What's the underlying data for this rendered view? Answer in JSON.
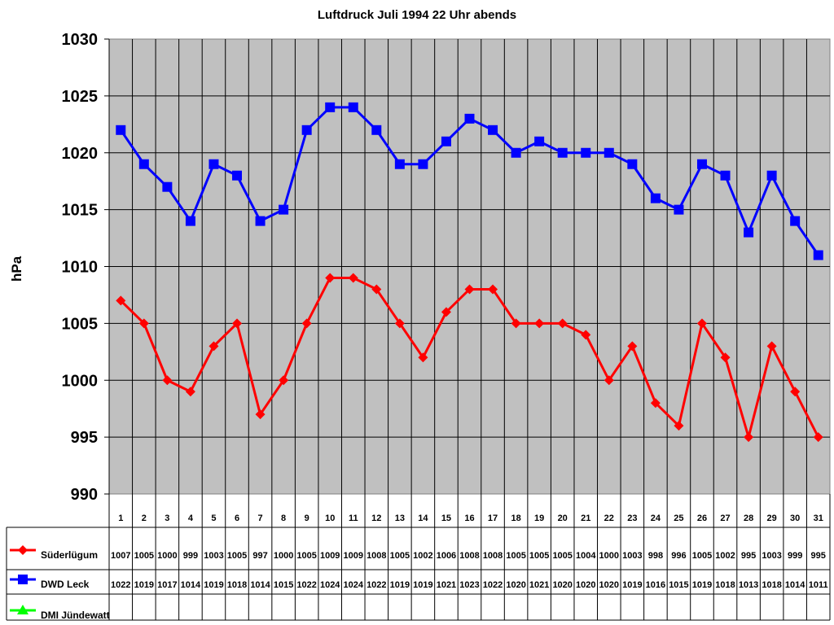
{
  "chart_data": {
    "type": "line",
    "title": "Luftdruck Juli 1994 22 Uhr abends",
    "xlabel": "",
    "ylabel": "hPa",
    "ylim": [
      990,
      1030
    ],
    "yticks": [
      990,
      995,
      1000,
      1005,
      1010,
      1015,
      1020,
      1025,
      1030
    ],
    "grid": true,
    "legend_position": "data-table-left",
    "categories": [
      "1",
      "2",
      "3",
      "4",
      "5",
      "6",
      "7",
      "8",
      "9",
      "10",
      "11",
      "12",
      "13",
      "14",
      "15",
      "16",
      "17",
      "18",
      "19",
      "20",
      "21",
      "22",
      "23",
      "24",
      "25",
      "26",
      "27",
      "28",
      "29",
      "30",
      "31"
    ],
    "series": [
      {
        "name": "Süderlügum",
        "color": "#ff0000",
        "marker": "diamond",
        "values": [
          1007,
          1005,
          1000,
          999,
          1003,
          1005,
          997,
          1000,
          1005,
          1009,
          1009,
          1008,
          1005,
          1002,
          1006,
          1008,
          1008,
          1005,
          1005,
          1005,
          1004,
          1000,
          1003,
          998,
          996,
          1005,
          1002,
          995,
          1003,
          999,
          995
        ]
      },
      {
        "name": "DWD Leck",
        "color": "#0000ff",
        "marker": "square",
        "values": [
          1022,
          1019,
          1017,
          1014,
          1019,
          1018,
          1014,
          1015,
          1022,
          1024,
          1024,
          1022,
          1019,
          1019,
          1021,
          1023,
          1022,
          1020,
          1021,
          1020,
          1020,
          1020,
          1019,
          1016,
          1015,
          1019,
          1018,
          1013,
          1018,
          1014,
          1011
        ]
      },
      {
        "name": "DMI Jündewatt",
        "color": "#00ff00",
        "marker": "triangle",
        "values": []
      }
    ]
  },
  "style": {
    "plot_bg": "#c0c0c0",
    "grid_color": "#000000"
  }
}
